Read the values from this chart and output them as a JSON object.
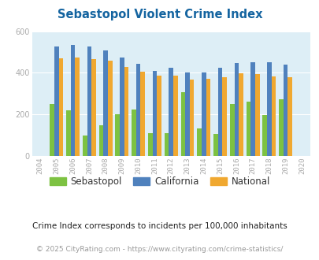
{
  "title": "Sebastopol Violent Crime Index",
  "years": [
    2004,
    2005,
    2006,
    2007,
    2008,
    2009,
    2010,
    2011,
    2012,
    2013,
    2014,
    2015,
    2016,
    2017,
    2018,
    2019,
    2020
  ],
  "sebastopol": [
    null,
    250,
    220,
    100,
    148,
    200,
    225,
    110,
    110,
    308,
    133,
    107,
    250,
    260,
    197,
    272,
    null
  ],
  "california": [
    null,
    528,
    535,
    528,
    508,
    472,
    443,
    410,
    425,
    400,
    400,
    425,
    447,
    450,
    450,
    440,
    null
  ],
  "national": [
    null,
    470,
    473,
    467,
    458,
    429,
    404,
    388,
    387,
    368,
    370,
    380,
    398,
    394,
    381,
    379,
    null
  ],
  "bar_width": 0.27,
  "color_sebastopol": "#7dc242",
  "color_california": "#4f81bd",
  "color_national": "#f0a830",
  "bg_color": "#ddeef6",
  "ylim": [
    0,
    600
  ],
  "yticks": [
    0,
    200,
    400,
    600
  ],
  "subtitle": "Crime Index corresponds to incidents per 100,000 inhabitants",
  "footer": "© 2025 CityRating.com - https://www.cityrating.com/crime-statistics/",
  "title_color": "#1464a0",
  "subtitle_color": "#222222",
  "footer_color": "#999999",
  "legend_labels": [
    "Sebastopol",
    "California",
    "National"
  ],
  "tick_color": "#aaaaaa"
}
